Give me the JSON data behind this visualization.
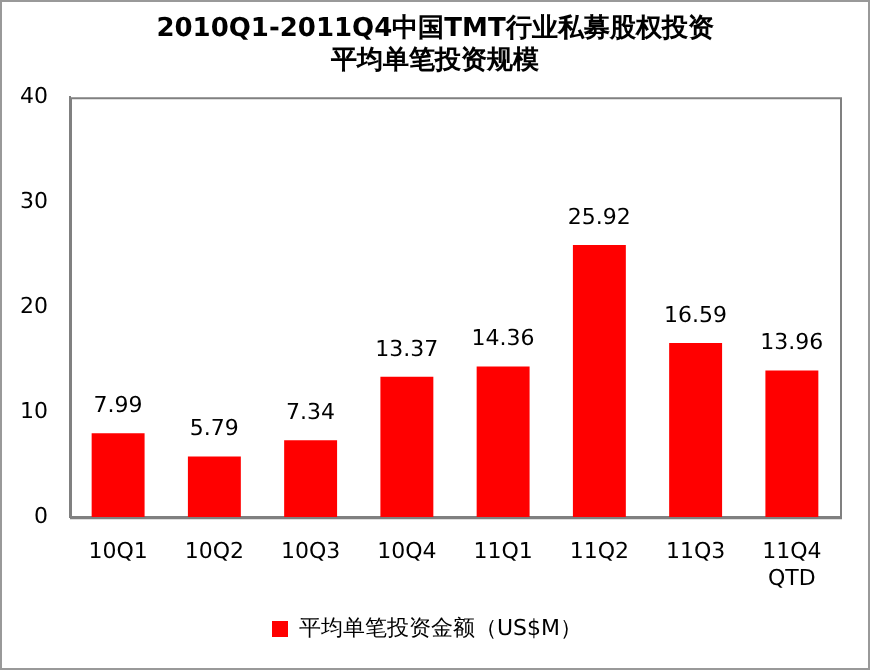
{
  "chart_data": {
    "type": "bar",
    "title": "2010Q1-2011Q4中国TMT行业私募股权投资平均单笔投资规模",
    "categories": [
      "10Q1",
      "10Q2",
      "10Q3",
      "10Q4",
      "11Q1",
      "11Q2",
      "11Q3",
      "11Q4\nQTD"
    ],
    "series": [
      {
        "name": "平均单笔投资金额（US$M）",
        "color": "#ff0000",
        "values": [
          7.99,
          5.79,
          7.34,
          13.37,
          14.36,
          25.92,
          16.59,
          13.96
        ]
      }
    ],
    "ylim": [
      0,
      40
    ],
    "yticks": [
      0,
      10,
      20,
      30,
      40
    ],
    "grid": false,
    "legend": "bottom",
    "data_labels": true
  }
}
